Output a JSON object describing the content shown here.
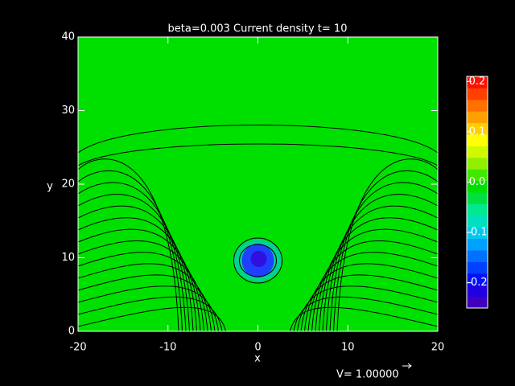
{
  "chart_data": {
    "type": "contour",
    "title": "beta=0.003 Current density t= 10",
    "x_label": "x",
    "y_label": "y",
    "xlim": [
      -20,
      20
    ],
    "xticks": [
      -20,
      -10,
      0,
      10,
      20
    ],
    "ylim": [
      0,
      40
    ],
    "yticks": [
      0,
      10,
      20,
      30,
      40
    ],
    "background_color": "#00e000",
    "colorbar": {
      "clim": [
        -0.25,
        0.21
      ],
      "ticks": [
        -0.2,
        -0.1,
        {
          "value": 0,
          "label": "0.0"
        },
        0.1,
        0.2
      ],
      "colors": [
        "#4000c0",
        "#2000e0",
        "#0010ff",
        "#0040ff",
        "#0070ff",
        "#00a0ff",
        "#00c8f0",
        "#00e0c0",
        "#00e890",
        "#00e040",
        "#00e000",
        "#40e800",
        "#90f000",
        "#d0f800",
        "#ffff00",
        "#ffd000",
        "#ffa000",
        "#ff7000",
        "#ff4000",
        "#ff1000"
      ]
    },
    "annotation": "V= 1.00000"
  }
}
